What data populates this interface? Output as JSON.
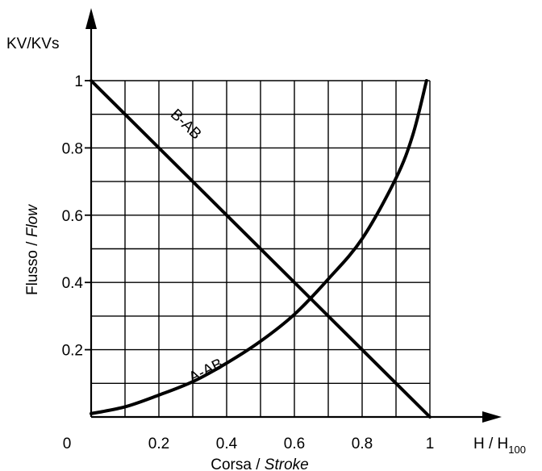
{
  "chart_data": {
    "type": "line",
    "ylabel_top": "KV/KVs",
    "ylabel_side": {
      "plain": "Flusso / ",
      "italic": "Flow"
    },
    "xlabel": {
      "plain": "Corsa / ",
      "italic": "Stroke"
    },
    "xlabel_right": {
      "main": "H / H",
      "sub": "100"
    },
    "xlim": [
      0,
      1
    ],
    "ylim": [
      0,
      1
    ],
    "grid": true,
    "x_ticks": [
      {
        "value": 0,
        "label": "0"
      },
      {
        "value": 0.2,
        "label": "0.2"
      },
      {
        "value": 0.4,
        "label": "0.4"
      },
      {
        "value": 0.6,
        "label": "0.6"
      },
      {
        "value": 0.8,
        "label": "0.8"
      },
      {
        "value": 1,
        "label": "1"
      }
    ],
    "y_ticks": [
      {
        "value": 0.2,
        "label": "0.2"
      },
      {
        "value": 0.4,
        "label": "0.4"
      },
      {
        "value": 0.6,
        "label": "0.6"
      },
      {
        "value": 0.8,
        "label": "0.8"
      },
      {
        "value": 1,
        "label": "1"
      }
    ],
    "series": [
      {
        "name": "B-AB",
        "x": [
          0,
          1
        ],
        "y": [
          1,
          0
        ]
      },
      {
        "name": "A-AB",
        "x": [
          0,
          0.1,
          0.2,
          0.3,
          0.4,
          0.5,
          0.6,
          0.7,
          0.8,
          0.9,
          0.95,
          0.99
        ],
        "y": [
          0.01,
          0.03,
          0.065,
          0.105,
          0.16,
          0.225,
          0.305,
          0.41,
          0.53,
          0.71,
          0.84,
          1.0
        ]
      }
    ]
  }
}
